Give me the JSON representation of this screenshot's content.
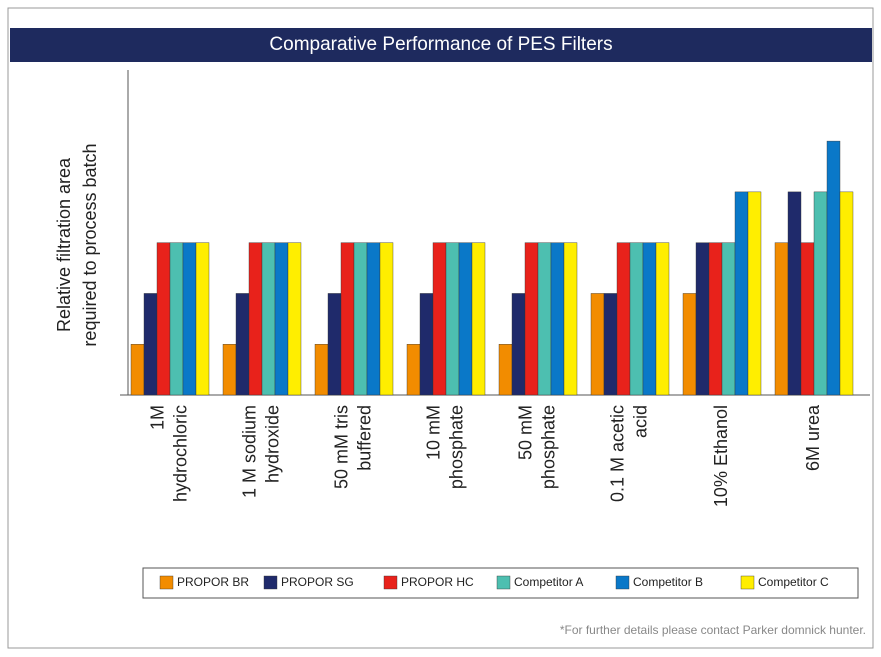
{
  "chart_data": {
    "type": "bar",
    "title": "Comparative Performance of PES Filters",
    "y_label": [
      "Relative filtration area",
      "required to process batch"
    ],
    "categories": [
      [
        "1M",
        "hydrochloric"
      ],
      [
        "1 M sodium",
        "hydroxide"
      ],
      [
        "50 mM tris",
        "buffered"
      ],
      [
        "10 mM",
        "phosphate"
      ],
      [
        "50 mM",
        "phosphate"
      ],
      [
        "0.1 M acetic",
        "acid"
      ],
      [
        "10% Ethanol"
      ],
      [
        "6M urea"
      ]
    ],
    "series": [
      {
        "name": "PROPOR BR",
        "color": "#f28c00",
        "values": [
          1,
          1,
          1,
          1,
          1,
          2,
          2,
          3
        ]
      },
      {
        "name": "PROPOR SG",
        "color": "#1f2a6b",
        "values": [
          2,
          2,
          2,
          2,
          2,
          2,
          3,
          4
        ]
      },
      {
        "name": "PROPOR HC",
        "color": "#e8221b",
        "values": [
          3,
          3,
          3,
          3,
          3,
          3,
          3,
          3
        ]
      },
      {
        "name": "Competitor A",
        "color": "#4dbfb0",
        "values": [
          3,
          3,
          3,
          3,
          3,
          3,
          3,
          4
        ]
      },
      {
        "name": "Competitor B",
        "color": "#0a78c8",
        "values": [
          3,
          3,
          3,
          3,
          3,
          3,
          4,
          5
        ]
      },
      {
        "name": "Competitor C",
        "color": "#ffee00",
        "values": [
          3,
          3,
          3,
          3,
          3,
          3,
          4,
          4
        ]
      }
    ],
    "ylim": [
      0,
      6.4
    ],
    "footnote": "*For further details please contact Parker domnick hunter."
  }
}
